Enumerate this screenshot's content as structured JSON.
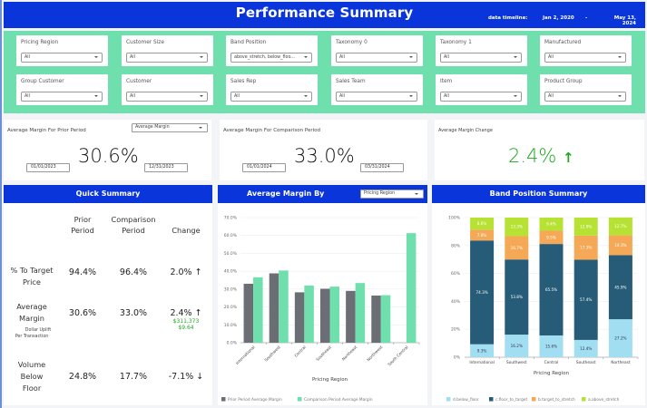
{
  "header": {
    "title": "Performance Summary",
    "timeline_label": "data timeline:",
    "timeline_start": "Jan 2, 2020",
    "timeline_separator": "-",
    "timeline_end": "May 13, 2024"
  },
  "filters": [
    {
      "label": "Pricing Region",
      "value": "All"
    },
    {
      "label": "Customer Size",
      "value": "All"
    },
    {
      "label": "Band Position",
      "value": "above_stretch, below_floo..."
    },
    {
      "label": "Taxonomy 0",
      "value": "All"
    },
    {
      "label": "Taxonomy 1",
      "value": "All"
    },
    {
      "label": "Manufactured",
      "value": "All"
    },
    {
      "label": "Group Customer",
      "value": "All"
    },
    {
      "label": "Customer",
      "value": "All"
    },
    {
      "label": "Sales Rep",
      "value": "All"
    },
    {
      "label": "Sales Team",
      "value": "All"
    },
    {
      "label": "Item",
      "value": "All"
    },
    {
      "label": "Product Group",
      "value": "All"
    }
  ],
  "kpis": {
    "prior": {
      "title": "Average Margin For Prior Period",
      "metric_select": "Average Margin",
      "value": "30.6%",
      "start_date": "01/01/2023",
      "end_date": "12/31/2023"
    },
    "comparison": {
      "title": "Average Margin For Comparison Period",
      "value": "33.0%",
      "start_date": "01/01/2024",
      "end_date": "03/31/2024"
    },
    "change": {
      "title": "Average Margin Change",
      "value": "2.4%",
      "arrow": "↑"
    }
  },
  "quick_summary": {
    "title": "Quick Summary",
    "columns": [
      "Prior Period",
      "Comparison Period",
      "Change"
    ],
    "col_lines": [
      [
        "Prior",
        "Period"
      ],
      [
        "Comparison",
        "Period"
      ],
      [
        "Change"
      ]
    ],
    "rows": [
      {
        "label_lines": [
          "% To Target",
          "Price"
        ],
        "prior": "94.4%",
        "comparison": "96.4%",
        "change": "2.0% ↑"
      },
      {
        "label_lines": [
          "Average",
          "Margin"
        ],
        "sub_label_lines": [
          "Dollar Uplift",
          "Per Transaction"
        ],
        "prior": "30.6%",
        "comparison": "33.0%",
        "change": "2.4% ↑",
        "sub_values": [
          "$311,373",
          "$9.64"
        ]
      },
      {
        "label_lines": [
          "Volume",
          "Below",
          "Floor"
        ],
        "prior": "24.8%",
        "comparison": "17.7%",
        "change": "-7.1% ↓"
      }
    ]
  },
  "colors": {
    "header_blue": "#0a35db",
    "filter_green": "#6fdfad",
    "positive_green": "#1ea81e",
    "prior_gray": "#6b6e75",
    "comparison_green": "#6fdfad",
    "below_floor": "#a2def2",
    "floor_to_target": "#275c78",
    "target_to_stretch": "#f5a957",
    "above_stretch": "#b7e234"
  },
  "chart_data": [
    {
      "type": "bar",
      "title": "Average Margin By",
      "group_by_select": "Pricing Region",
      "xlabel": "Pricing Region",
      "ylabel": "",
      "ylim": [
        0,
        70
      ],
      "yticks": [
        "0.0%",
        "10.0%",
        "20.0%",
        "30.0%",
        "40.0%",
        "50.0%",
        "60.0%",
        "70.0%"
      ],
      "grid": true,
      "legend_position": "bottom-left",
      "categories": [
        "International",
        "Southwest",
        "Central",
        "Southeast",
        "Northeast",
        "Northwest",
        "South Central"
      ],
      "series": [
        {
          "name": "Prior Period Average Margin",
          "values": [
            33.0,
            38.8,
            28.2,
            30.2,
            29.0,
            26.4,
            null
          ]
        },
        {
          "name": "Comparison Period Average Margin",
          "values": [
            36.6,
            40.4,
            32.0,
            31.4,
            33.4,
            26.6,
            61.3
          ]
        }
      ]
    },
    {
      "type": "bar",
      "stacked": true,
      "title": "Band Position Summary",
      "xlabel": "Pricing Region",
      "ylim": [
        0,
        100
      ],
      "yticks": [
        "0%",
        "20%",
        "40%",
        "60%",
        "80%",
        "100%"
      ],
      "grid": true,
      "legend_position": "bottom",
      "categories": [
        "International",
        "Southwest",
        "Central",
        "Southeast",
        "Northeast"
      ],
      "series": [
        {
          "name": "d.below_floor",
          "values": [
            9.3,
            16.2,
            15.6,
            12.4,
            27.2
          ],
          "labels": [
            "9.3%",
            "16.2%",
            "15.6%",
            "12.4%",
            "27.2%"
          ]
        },
        {
          "name": "c.floor_to_target",
          "values": [
            74.3,
            53.8,
            65.5,
            57.4,
            45.9
          ],
          "labels": [
            "74.3%",
            "53.8%",
            "65.5%",
            "57.4%",
            "45.9%"
          ]
        },
        {
          "name": "b.target_to_stretch",
          "values": [
            7.8,
            16.7,
            9.5,
            17.3,
            14.3
          ],
          "labels": [
            "7.8%",
            "16.7%",
            "9.5%",
            "17.3%",
            "14.3%"
          ]
        },
        {
          "name": "a.above_stretch",
          "values": [
            8.6,
            13.3,
            9.4,
            12.9,
            12.7
          ],
          "labels": [
            "8.6%",
            "13.3%",
            "9.4%",
            "12.9%",
            "12.7%"
          ]
        }
      ]
    }
  ]
}
